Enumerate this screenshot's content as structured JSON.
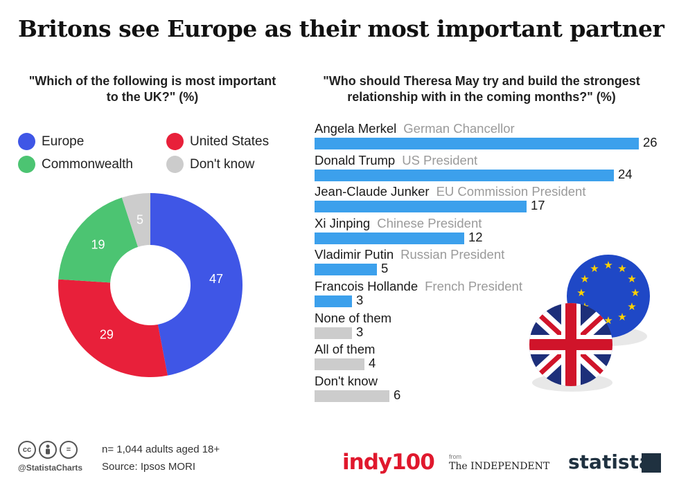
{
  "title": "Britons see Europe as their most important partner",
  "left_question": "\"Which of the following is most important to the UK?\" (%)",
  "right_question": "\"Who should Theresa May try and build the strongest relationship with in the coming months?\" (%)",
  "chart_data": [
    {
      "type": "pie",
      "variant": "donut",
      "categories": [
        "Europe",
        "United States",
        "Commonwealth",
        "Don't know"
      ],
      "values": [
        47,
        29,
        19,
        5
      ],
      "colors": [
        "#3f56e6",
        "#e8203a",
        "#4cc472",
        "#cccccc"
      ],
      "legend": "top"
    },
    {
      "type": "bar",
      "orientation": "horizontal",
      "categories": [
        "Angela Merkel",
        "Donald Trump",
        "Jean-Claude Junker",
        "Xi Jinping",
        "Vladimir Putin",
        "Francois Hollande",
        "None of them",
        "All of them",
        "Don't know"
      ],
      "roles": [
        "German Chancellor",
        "US President",
        "EU Commission President",
        "Chinese President",
        "Russian President",
        "French President",
        "",
        "",
        ""
      ],
      "values": [
        26,
        24,
        17,
        12,
        5,
        3,
        3,
        4,
        6
      ],
      "colors": [
        "#3ca0ec",
        "#3ca0ec",
        "#3ca0ec",
        "#3ca0ec",
        "#3ca0ec",
        "#3ca0ec",
        "#cccccc",
        "#cccccc",
        "#cccccc"
      ]
    }
  ],
  "footer": {
    "cc_icons": [
      "cc-icon",
      "person-icon",
      "equals-icon"
    ],
    "cc_texts": [
      "cc",
      "",
      "="
    ],
    "handle": "@StatistaCharts",
    "sample": "n= 1,044 adults aged 18+",
    "source": "Source: Ipsos MORI",
    "logo_indy": "indy100",
    "logo_from": "from",
    "logo_independent": "The INDEPENDENT",
    "logo_statista": "statista"
  }
}
